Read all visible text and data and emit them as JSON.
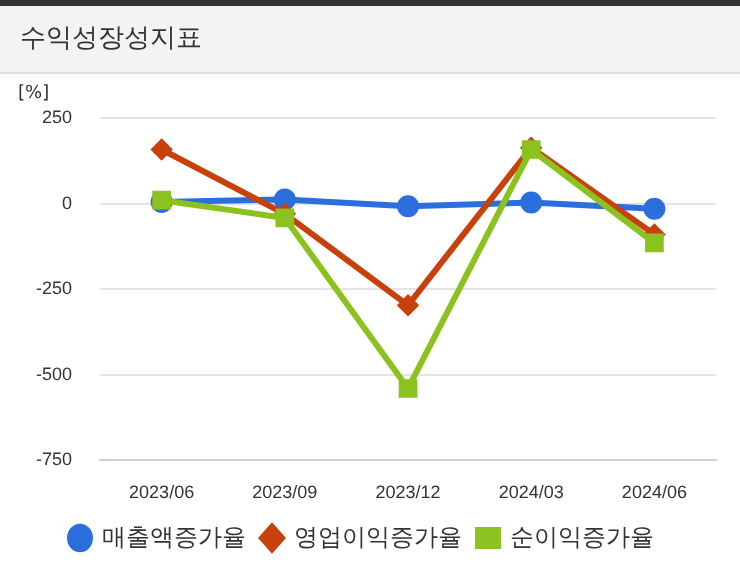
{
  "chart_data": {
    "type": "line",
    "title": "수익성장성지표",
    "ylabel": "[%]",
    "categories": [
      "2023/06",
      "2023/09",
      "2023/12",
      "2024/03",
      "2024/06"
    ],
    "series": [
      {
        "name": "매출액증가율",
        "color": "#2a6fdb",
        "marker": "circle",
        "values": [
          5,
          12,
          -8,
          3,
          -15
        ]
      },
      {
        "name": "영업이익증가율",
        "color": "#c8400c",
        "marker": "diamond",
        "values": [
          158,
          -30,
          -297,
          163,
          -90
        ]
      },
      {
        "name": "순이익증가율",
        "color": "#8cc21f",
        "marker": "square",
        "values": [
          10,
          -42,
          -540,
          158,
          -115
        ]
      }
    ],
    "ylim": [
      -750,
      250
    ],
    "yticks": [
      -750,
      -500,
      -250,
      0,
      250
    ],
    "grid": "y",
    "legend": "bottom"
  }
}
